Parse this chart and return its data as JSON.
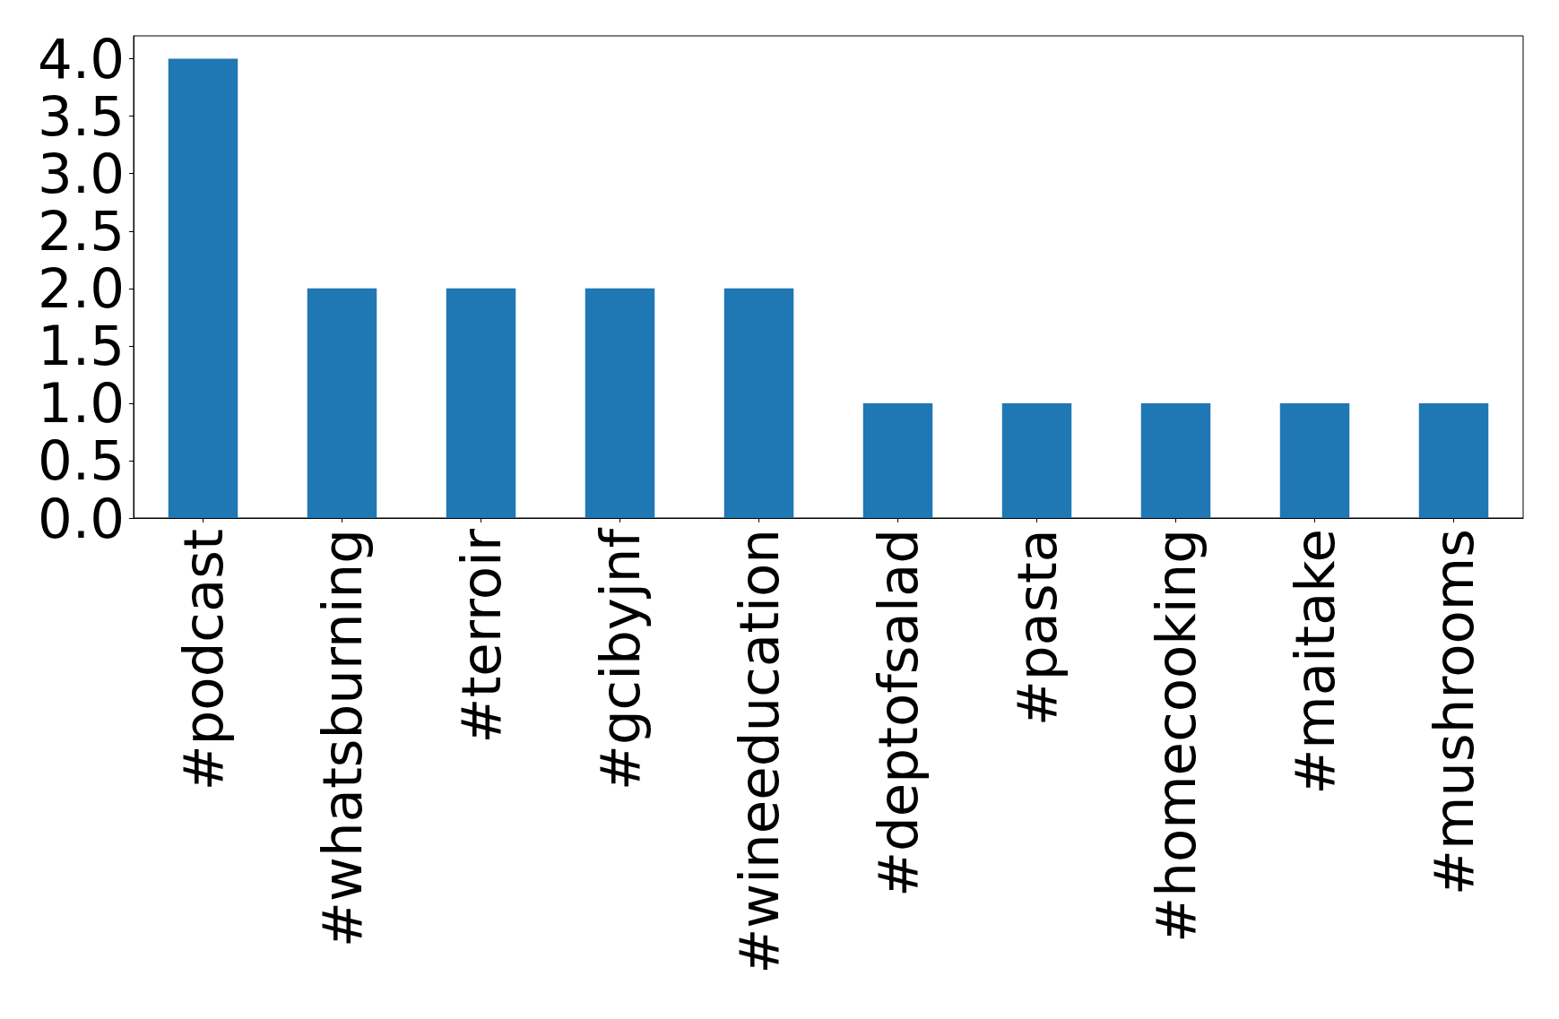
{
  "chart_data": {
    "type": "bar",
    "categories": [
      "#podcast",
      "#whatsburning",
      "#terroir",
      "#gcibyjnf",
      "#wineeducation",
      "#deptofsalad",
      "#pasta",
      "#homecooking",
      "#maitake",
      "#mushrooms"
    ],
    "values": [
      4,
      2,
      2,
      2,
      2,
      1,
      1,
      1,
      1,
      1
    ],
    "color": "#1f77b4",
    "ylim": [
      0,
      4.2
    ],
    "yticks": [
      {
        "value": 0,
        "label": "0.0"
      },
      {
        "value": 0.5,
        "label": "0.5"
      },
      {
        "value": 1,
        "label": "1.0"
      },
      {
        "value": 1.5,
        "label": "1.5"
      },
      {
        "value": 2,
        "label": "2.0"
      },
      {
        "value": 2.5,
        "label": "2.5"
      },
      {
        "value": 3,
        "label": "3.0"
      },
      {
        "value": 3.5,
        "label": "3.5"
      },
      {
        "value": 4,
        "label": "4.0"
      }
    ],
    "grid": false
  }
}
